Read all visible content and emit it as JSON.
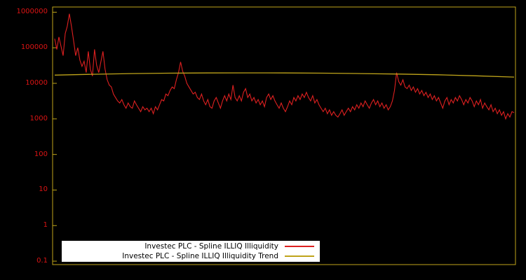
{
  "colors": {
    "background": "#000000",
    "axis": "#bfa41a",
    "tick_label": "#dd1414",
    "legend_bg": "#ffffff",
    "legend_text": "#000000"
  },
  "legend": {
    "items": [
      {
        "label": "Investec PLC - Spline ILLIQ Illiquidity",
        "color": "#dd2020"
      },
      {
        "label": "Investec PLC - Spline ILLIQ Illiquidity Trend",
        "color": "#bfa41a"
      }
    ]
  },
  "chart_data": {
    "type": "line",
    "title": "",
    "xlabel": "",
    "ylabel": "",
    "y_scale": "log",
    "ylim": [
      0.08,
      1400000
    ],
    "y_ticks": [
      "1000000",
      "100000",
      "10000",
      "1000",
      "100",
      "10",
      "1",
      "0.1"
    ],
    "grid": false,
    "legend_position": "bottom-center",
    "series": [
      {
        "name": "Investec PLC - Spline ILLIQ Illiquidity",
        "color": "#dd2020",
        "values": [
          180000,
          90000,
          200000,
          110000,
          60000,
          250000,
          400000,
          900000,
          400000,
          160000,
          60000,
          100000,
          45000,
          30000,
          42000,
          20000,
          79000,
          25000,
          16000,
          90000,
          32000,
          20000,
          40000,
          79000,
          25000,
          12600,
          8900,
          7900,
          5000,
          4000,
          3200,
          2800,
          3500,
          2500,
          2000,
          2800,
          2200,
          2000,
          3200,
          2500,
          2000,
          1600,
          2200,
          1800,
          2000,
          1600,
          2000,
          1400,
          2200,
          1800,
          2500,
          3500,
          3200,
          5000,
          4500,
          6300,
          7900,
          7100,
          12600,
          20000,
          40000,
          22000,
          16000,
          10000,
          7900,
          6300,
          5000,
          5600,
          4000,
          3500,
          5000,
          3200,
          2500,
          3500,
          2200,
          2000,
          3200,
          4000,
          2800,
          2000,
          3200,
          4500,
          3200,
          5000,
          3500,
          8900,
          4000,
          3200,
          4500,
          3200,
          5600,
          7100,
          4000,
          5000,
          3200,
          4000,
          2800,
          3500,
          2500,
          3200,
          2200,
          4000,
          5000,
          3500,
          4500,
          3200,
          2500,
          2000,
          2800,
          2000,
          1600,
          2200,
          3200,
          2500,
          4000,
          3200,
          4500,
          3500,
          5000,
          4000,
          5600,
          4000,
          3200,
          4500,
          2800,
          3500,
          2500,
          2000,
          1600,
          2000,
          1400,
          1800,
          1260,
          1600,
          1260,
          1120,
          1400,
          1800,
          1260,
          1600,
          2000,
          1600,
          2200,
          1800,
          2500,
          2000,
          2800,
          2200,
          3200,
          2500,
          2000,
          2800,
          3500,
          2500,
          3200,
          2200,
          2800,
          2000,
          2500,
          1800,
          2200,
          3200,
          6300,
          20000,
          11200,
          8900,
          12600,
          7900,
          7100,
          8900,
          6300,
          7900,
          5600,
          7100,
          5000,
          6300,
          4500,
          5600,
          4000,
          5000,
          3500,
          4500,
          3200,
          4000,
          2800,
          2000,
          3200,
          4000,
          2500,
          3500,
          2800,
          4000,
          3200,
          4500,
          3500,
          2500,
          3500,
          2800,
          4000,
          3200,
          2200,
          3200,
          2500,
          3500,
          2000,
          2800,
          2200,
          1800,
          2500,
          1600,
          2000,
          1400,
          1800,
          1260,
          1600,
          1000,
          1400,
          1120,
          1600,
          1500
        ]
      },
      {
        "name": "Investec PLC - Spline ILLIQ Illiquidity Trend",
        "color": "#bfa41a",
        "values": [
          17000,
          18000,
          18800,
          19300,
          19600,
          19700,
          19600,
          19300,
          18800,
          18200,
          17400,
          16300,
          15000
        ]
      }
    ]
  }
}
